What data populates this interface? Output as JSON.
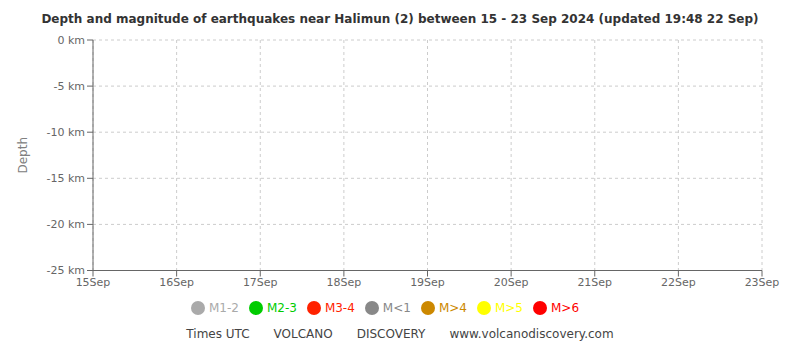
{
  "chart_data": {
    "type": "scatter",
    "title": "Depth and magnitude of earthquakes near Halimun (2) between 15 - 23 Sep 2024 (updated 19:48 22 Sep)",
    "y_label": "Depth",
    "x": [],
    "series": [
      {
        "name": "M<1",
        "color": "#888888",
        "values": []
      },
      {
        "name": "M1-2",
        "color": "#aaaaaa",
        "values": []
      },
      {
        "name": "M2-3",
        "color": "#00cc00",
        "values": []
      },
      {
        "name": "M3-4",
        "color": "#ff2200",
        "values": []
      },
      {
        "name": "M>4",
        "color": "#cc8800",
        "values": []
      },
      {
        "name": "M>5",
        "color": "#ffff00",
        "values": []
      },
      {
        "name": "M>6",
        "color": "#ff0000",
        "values": []
      }
    ],
    "xlim": [
      0,
      8
    ],
    "xticks": [
      {
        "value": 0,
        "label": "15Sep"
      },
      {
        "value": 1,
        "label": "16Sep"
      },
      {
        "value": 2,
        "label": "17Sep"
      },
      {
        "value": 3,
        "label": "18Sep"
      },
      {
        "value": 4,
        "label": "19Sep"
      },
      {
        "value": 5,
        "label": "20Sep"
      },
      {
        "value": 6,
        "label": "21Sep"
      },
      {
        "value": 7,
        "label": "22Sep"
      },
      {
        "value": 8,
        "label": "23Sep"
      }
    ],
    "ylim": [
      -25,
      0
    ],
    "yticks": [
      {
        "value": 0,
        "label": "0 km"
      },
      {
        "value": -5,
        "label": "-5 km"
      },
      {
        "value": -10,
        "label": "-10 km"
      },
      {
        "value": -15,
        "label": "-15 km"
      },
      {
        "value": -20,
        "label": "-20 km"
      },
      {
        "value": -25,
        "label": "-25 km"
      }
    ],
    "grid": true,
    "legend": "bottom",
    "annotations": [
      "Times UTC",
      "VOLCANO",
      "DISCOVERY",
      "www.volcanodiscovery.com"
    ]
  }
}
